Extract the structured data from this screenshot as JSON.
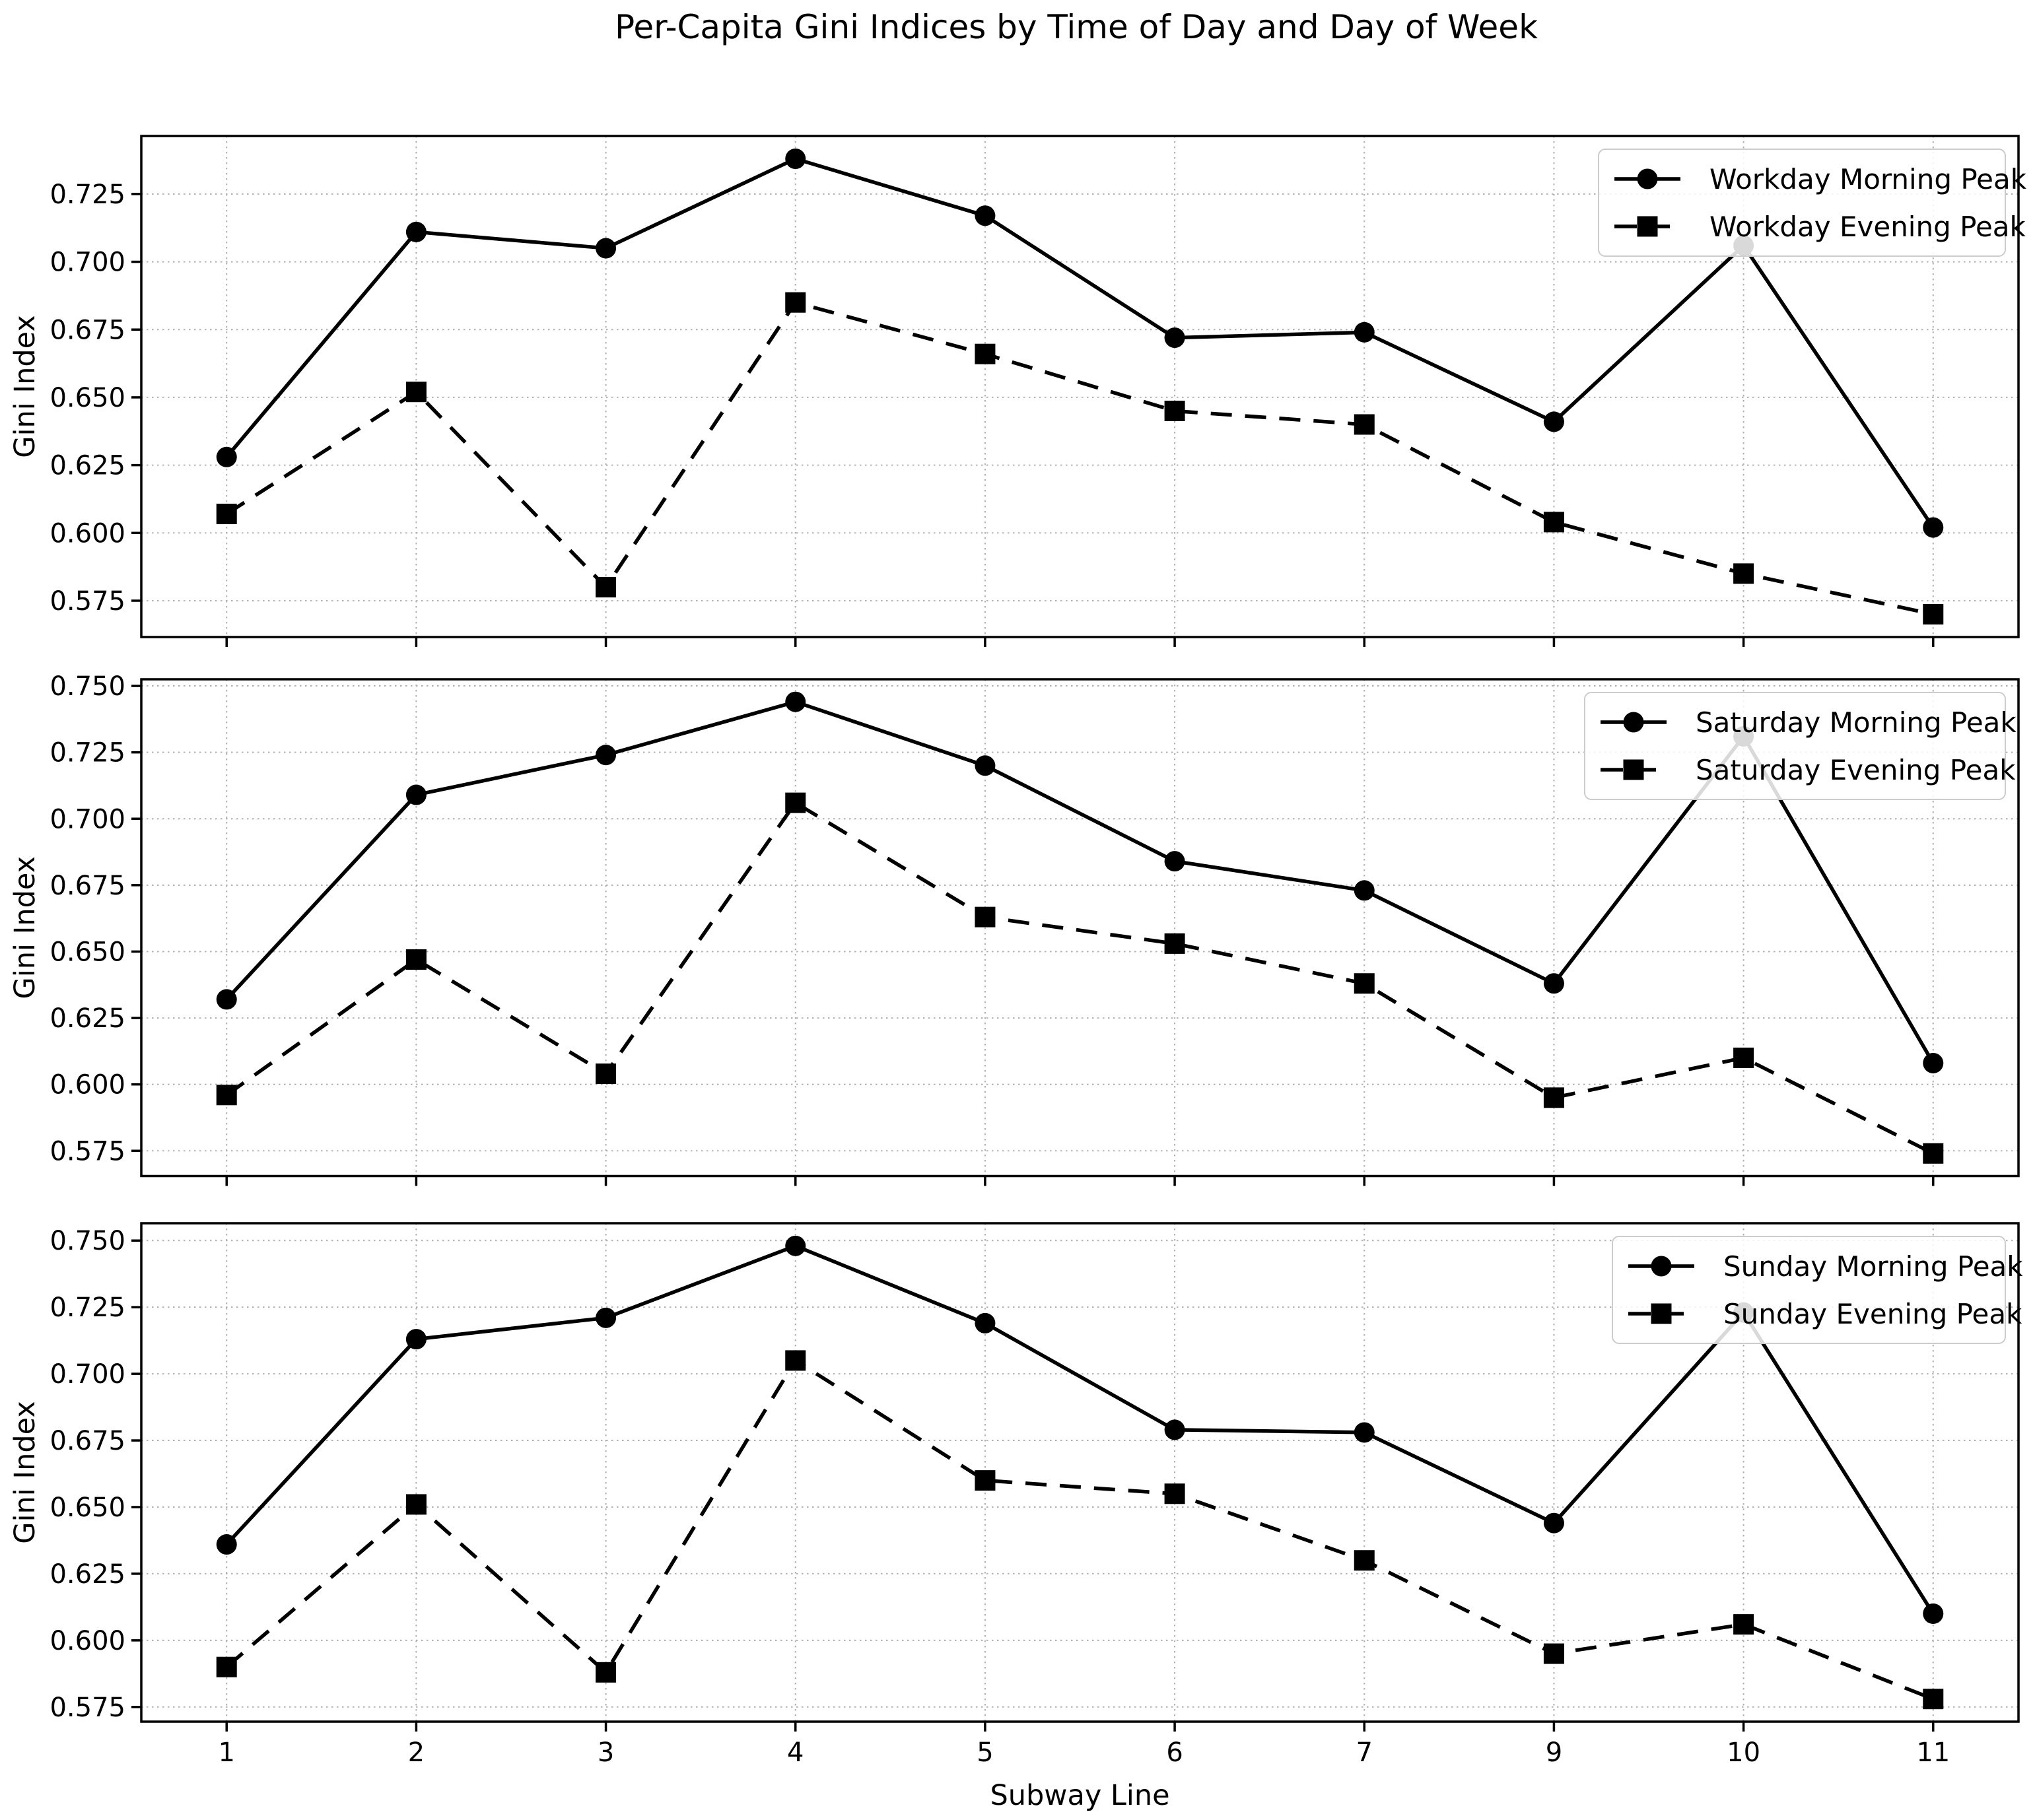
{
  "figure_title": "Per-Capita Gini Indices by Time of Day and Day of Week",
  "xlabel": "Subway Line",
  "ylabel": "Gini Index",
  "colors": {
    "line": "#000000",
    "grid": "#b0b0b0",
    "legend_border": "#cccccc",
    "background": "#ffffff"
  },
  "chart_data": [
    {
      "type": "line",
      "title": "Workday",
      "categories": [
        "1",
        "2",
        "3",
        "4",
        "5",
        "6",
        "7",
        "9",
        "10",
        "11"
      ],
      "series": [
        {
          "name": "Workday Morning Peak",
          "marker": "circle",
          "linestyle": "solid",
          "values": [
            0.628,
            0.711,
            0.705,
            0.738,
            0.717,
            0.672,
            0.674,
            0.641,
            0.706,
            0.602
          ]
        },
        {
          "name": "Workday Evening Peak",
          "marker": "square",
          "linestyle": "dashed",
          "values": [
            0.607,
            0.652,
            0.58,
            0.685,
            0.666,
            0.645,
            0.64,
            0.604,
            0.585,
            0.57
          ]
        }
      ],
      "ylabel": "Gini Index",
      "ylim": [
        0.5616,
        0.7464
      ],
      "yticks": [
        0.575,
        0.6,
        0.625,
        0.65,
        0.675,
        0.7,
        0.725
      ],
      "legend_position": "upper right",
      "grid": true
    },
    {
      "type": "line",
      "title": "Saturday",
      "categories": [
        "1",
        "2",
        "3",
        "4",
        "5",
        "6",
        "7",
        "9",
        "10",
        "11"
      ],
      "series": [
        {
          "name": "Saturday Morning Peak",
          "marker": "circle",
          "linestyle": "solid",
          "values": [
            0.632,
            0.709,
            0.724,
            0.744,
            0.72,
            0.684,
            0.673,
            0.638,
            0.731,
            0.608
          ]
        },
        {
          "name": "Saturday Evening Peak",
          "marker": "square",
          "linestyle": "dashed",
          "values": [
            0.596,
            0.647,
            0.604,
            0.706,
            0.663,
            0.653,
            0.638,
            0.595,
            0.61,
            0.574
          ]
        }
      ],
      "ylabel": "Gini Index",
      "ylim": [
        0.5655,
        0.7525
      ],
      "yticks": [
        0.575,
        0.6,
        0.625,
        0.65,
        0.675,
        0.7,
        0.725,
        0.75
      ],
      "legend_position": "upper right",
      "grid": true
    },
    {
      "type": "line",
      "title": "Sunday",
      "categories": [
        "1",
        "2",
        "3",
        "4",
        "5",
        "6",
        "7",
        "9",
        "10",
        "11"
      ],
      "series": [
        {
          "name": "Sunday Morning Peak",
          "marker": "circle",
          "linestyle": "solid",
          "values": [
            0.636,
            0.713,
            0.721,
            0.748,
            0.719,
            0.679,
            0.678,
            0.644,
            0.723,
            0.61
          ]
        },
        {
          "name": "Sunday Evening Peak",
          "marker": "square",
          "linestyle": "dashed",
          "values": [
            0.59,
            0.651,
            0.588,
            0.705,
            0.66,
            0.655,
            0.63,
            0.595,
            0.606,
            0.578
          ]
        }
      ],
      "ylabel": "Gini Index",
      "ylim": [
        0.5695,
        0.7565
      ],
      "yticks": [
        0.575,
        0.6,
        0.625,
        0.65,
        0.675,
        0.7,
        0.725,
        0.75
      ],
      "legend_position": "upper right",
      "grid": true
    }
  ]
}
